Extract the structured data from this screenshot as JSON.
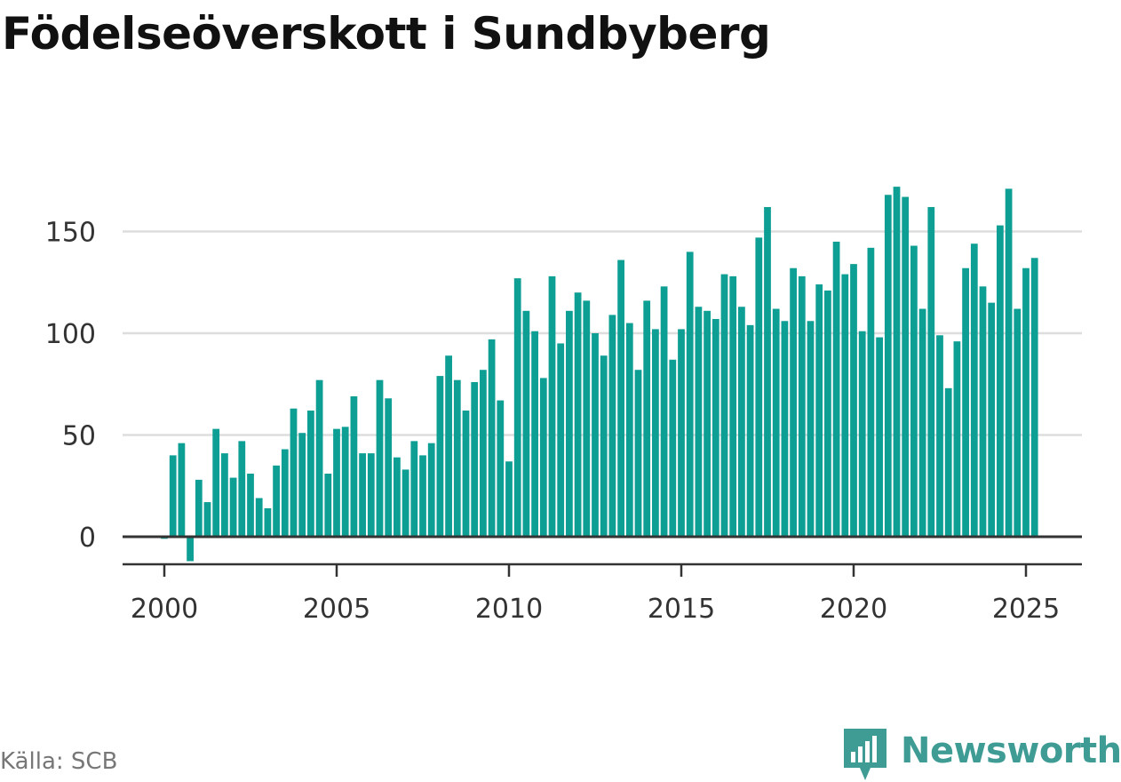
{
  "title": "Födelseöverskott i Sundbyberg",
  "source": "Källa: SCB",
  "brand": {
    "name": "Newsworthy",
    "color": "#3f9c94",
    "icon": "bar-chart-speech-bubble-icon"
  },
  "colors": {
    "bar": "#0d9e94",
    "grid": "#dddddd",
    "axis": "#333333"
  },
  "chart_data": {
    "type": "bar",
    "title": "Födelseöverskott i Sundbyberg",
    "xlabel": "",
    "ylabel": "",
    "frequency": "quarterly",
    "x_start": 2000.0,
    "x_step": 0.25,
    "xlim": [
      1998.8,
      2026.8
    ],
    "ylim": [
      -14,
      180
    ],
    "yticks": [
      0,
      50,
      100,
      150
    ],
    "xticks": [
      2000,
      2005,
      2010,
      2015,
      2020,
      2025
    ],
    "grid": true,
    "values": [
      -1,
      40,
      46,
      -12,
      28,
      17,
      53,
      41,
      29,
      47,
      31,
      19,
      14,
      35,
      43,
      63,
      51,
      62,
      77,
      31,
      53,
      54,
      69,
      41,
      41,
      77,
      68,
      39,
      33,
      47,
      40,
      46,
      79,
      89,
      77,
      62,
      76,
      82,
      97,
      67,
      37,
      127,
      111,
      101,
      78,
      128,
      95,
      111,
      120,
      116,
      100,
      89,
      109,
      136,
      105,
      82,
      116,
      102,
      123,
      87,
      102,
      140,
      113,
      111,
      107,
      129,
      128,
      113,
      104,
      147,
      162,
      112,
      106,
      132,
      128,
      106,
      124,
      121,
      145,
      129,
      134,
      101,
      142,
      98,
      168,
      172,
      167,
      143,
      112,
      162,
      99,
      73,
      96,
      132,
      144,
      123,
      115,
      153,
      171,
      112,
      132,
      137
    ]
  }
}
